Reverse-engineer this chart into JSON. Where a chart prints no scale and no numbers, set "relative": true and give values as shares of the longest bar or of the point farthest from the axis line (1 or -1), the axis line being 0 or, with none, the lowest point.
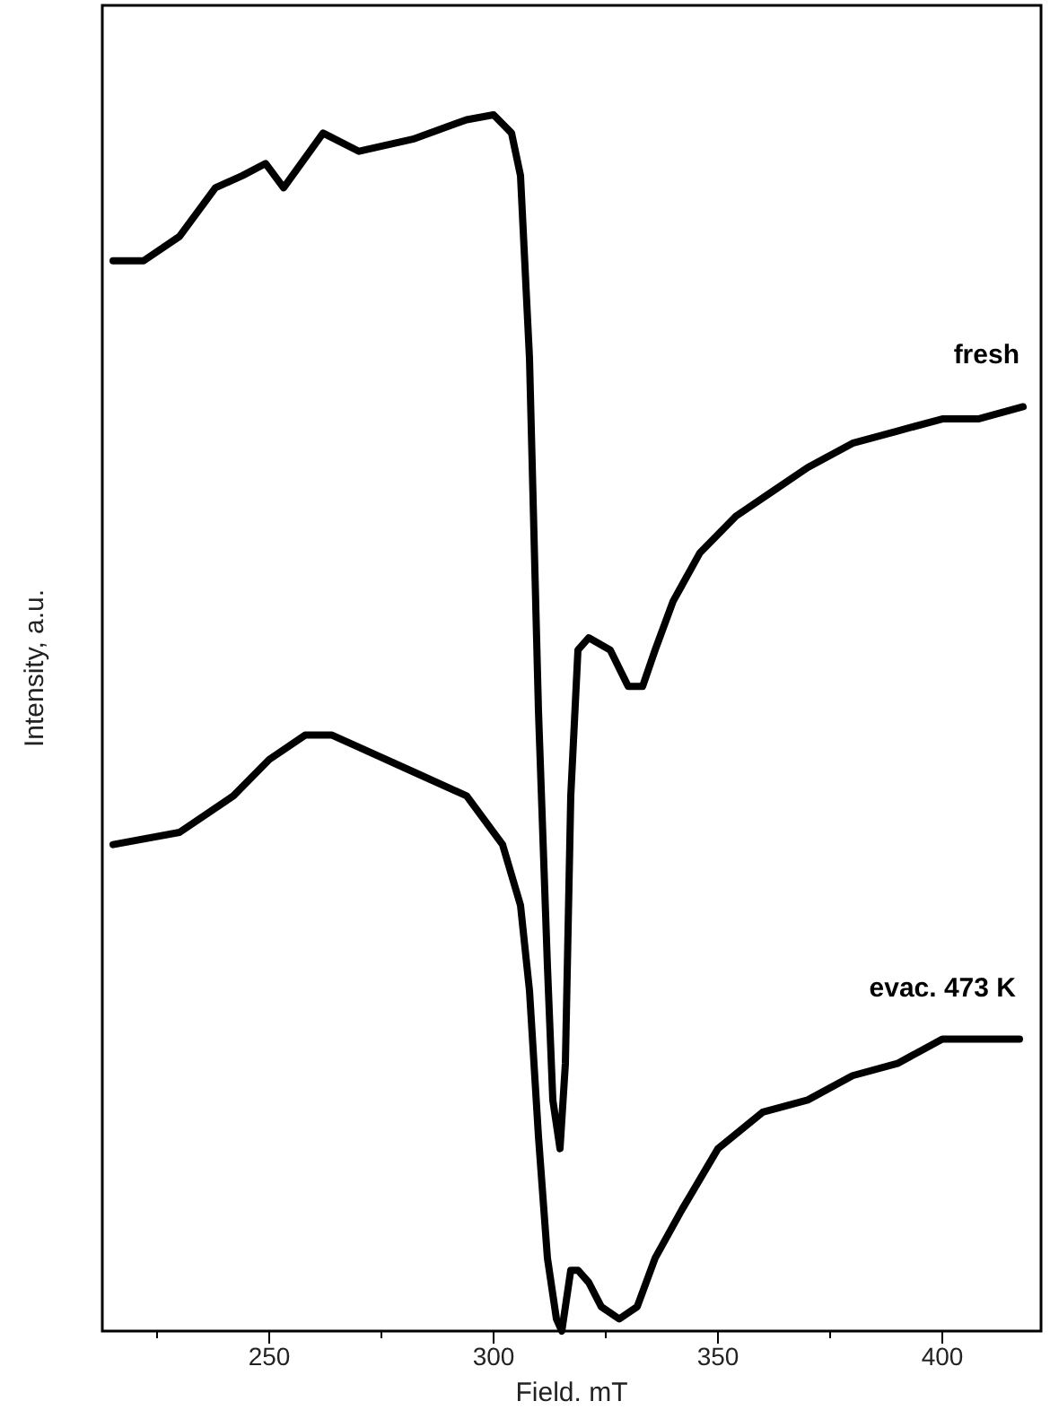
{
  "chart_data": {
    "type": "line",
    "relative": true,
    "xlabel": "Field. mT",
    "ylabel": "Intensity, a.u.",
    "xlim": [
      212.8,
      422
    ],
    "xticks": [
      {
        "value": 225,
        "label": null
      },
      250,
      {
        "value": 275,
        "label": null
      },
      300,
      {
        "value": 325,
        "label": null
      },
      350,
      {
        "value": 375,
        "label": null
      },
      400
    ],
    "legend": false,
    "marker": "none",
    "line_style": "solid",
    "series": [
      {
        "name": "fresh",
        "color": "#000000",
        "x": [
          215.2,
          222,
          230,
          238,
          244,
          249.2,
          253.2,
          262,
          270,
          282,
          294,
          300,
          304,
          306,
          308,
          310,
          312,
          313.2,
          314.8,
          316,
          317.2,
          318.8,
          321.2,
          326,
          330,
          333.2,
          336,
          340,
          346,
          354,
          362,
          370,
          380,
          390,
          400,
          408,
          418
        ],
        "values": [
          0.88,
          0.88,
          0.9,
          0.94,
          0.95,
          0.96,
          0.94,
          0.985,
          0.97,
          0.98,
          0.996,
          1,
          0.985,
          0.95,
          0.8,
          0.51,
          0.3,
          0.19,
          0.15,
          0.22,
          0.44,
          0.56,
          0.57,
          0.56,
          0.53,
          0.53,
          0.56,
          0.6,
          0.64,
          0.67,
          0.69,
          0.71,
          0.73,
          0.74,
          0.75,
          0.75,
          0.76
        ]
      },
      {
        "name": "evac. 473 K",
        "color": "#000000",
        "x": [
          215.2,
          230,
          242,
          250,
          258,
          264,
          270,
          282,
          294,
          302,
          306,
          308,
          310,
          312,
          314,
          315.2,
          317.2,
          318.8,
          321.2,
          324,
          328,
          332,
          336,
          342,
          350,
          360,
          370,
          380,
          390,
          400,
          408,
          417.2
        ],
        "values": [
          0.4,
          0.41,
          0.44,
          0.47,
          0.49,
          0.49,
          0.48,
          0.46,
          0.44,
          0.4,
          0.35,
          0.28,
          0.16,
          0.06,
          0.01,
          0,
          0.05,
          0.05,
          0.04,
          0.02,
          0.01,
          0.02,
          0.06,
          0.1,
          0.15,
          0.18,
          0.19,
          0.21,
          0.22,
          0.24,
          0.24,
          0.24
        ]
      }
    ]
  }
}
